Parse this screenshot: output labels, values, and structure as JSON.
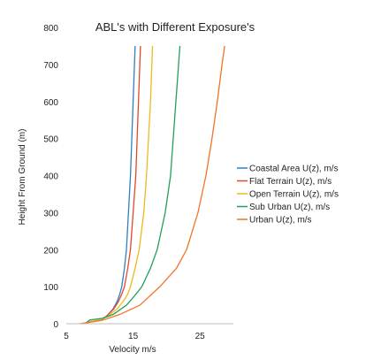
{
  "chart_data": {
    "type": "line",
    "title": "ABL's with Different Exposure's",
    "xlabel": "Velocity m/s",
    "ylabel": "Height From Ground (m)",
    "xlim": [
      5,
      30
    ],
    "ylim": [
      0,
      800
    ],
    "x_ticks": [
      5,
      15,
      25
    ],
    "y_ticks": [
      0,
      100,
      200,
      300,
      400,
      500,
      600,
      700,
      800
    ],
    "grid": false,
    "legend_position": "right",
    "series": [
      {
        "name": "Coastal Area U(z), m/s",
        "color": "#2F7FC1",
        "points": [
          [
            7.8,
            0
          ],
          [
            8.5,
            5
          ],
          [
            10.2,
            10
          ],
          [
            11.0,
            20
          ],
          [
            12.0,
            40
          ],
          [
            12.6,
            60
          ],
          [
            13.0,
            80
          ],
          [
            13.3,
            100
          ],
          [
            13.7,
            150
          ],
          [
            14.0,
            200
          ],
          [
            14.3,
            300
          ],
          [
            14.6,
            400
          ],
          [
            14.8,
            500
          ],
          [
            15.0,
            600
          ],
          [
            15.2,
            700
          ],
          [
            15.3,
            750
          ]
        ]
      },
      {
        "name": "Flat Terrain U(z), m/s",
        "color": "#E2482A",
        "points": [
          [
            7.5,
            0
          ],
          [
            8.5,
            5
          ],
          [
            10.0,
            10
          ],
          [
            11.0,
            20
          ],
          [
            12.1,
            40
          ],
          [
            12.8,
            60
          ],
          [
            13.3,
            80
          ],
          [
            13.7,
            100
          ],
          [
            14.2,
            150
          ],
          [
            14.6,
            200
          ],
          [
            15.0,
            300
          ],
          [
            15.4,
            400
          ],
          [
            15.6,
            500
          ],
          [
            15.8,
            600
          ],
          [
            16.0,
            700
          ],
          [
            16.1,
            750
          ]
        ]
      },
      {
        "name": "Open Terrain U(z), m/s",
        "color": "#F2B720",
        "points": [
          [
            7.2,
            0
          ],
          [
            8.4,
            5
          ],
          [
            10.0,
            10
          ],
          [
            11.2,
            20
          ],
          [
            12.6,
            40
          ],
          [
            13.5,
            60
          ],
          [
            14.2,
            80
          ],
          [
            14.6,
            100
          ],
          [
            15.3,
            150
          ],
          [
            15.9,
            200
          ],
          [
            16.6,
            300
          ],
          [
            17.0,
            400
          ],
          [
            17.3,
            500
          ],
          [
            17.6,
            600
          ],
          [
            17.8,
            700
          ],
          [
            17.9,
            750
          ]
        ]
      },
      {
        "name": "Sub Urban U(z), m/s",
        "color": "#22A05A",
        "points": [
          [
            7.8,
            0
          ],
          [
            8.5,
            10
          ],
          [
            10.5,
            15
          ],
          [
            12.0,
            25
          ],
          [
            14.0,
            50
          ],
          [
            15.2,
            75
          ],
          [
            16.3,
            100
          ],
          [
            17.6,
            150
          ],
          [
            18.6,
            200
          ],
          [
            19.8,
            300
          ],
          [
            20.6,
            400
          ],
          [
            21.0,
            500
          ],
          [
            21.4,
            600
          ],
          [
            21.8,
            700
          ],
          [
            22.0,
            750
          ]
        ]
      },
      {
        "name": "Urban U(z), m/s",
        "color": "#F07426",
        "points": [
          [
            7.0,
            0
          ],
          [
            9.0,
            5
          ],
          [
            10.5,
            10
          ],
          [
            13.0,
            25
          ],
          [
            16.0,
            50
          ],
          [
            19.0,
            100
          ],
          [
            21.5,
            150
          ],
          [
            23.0,
            200
          ],
          [
            24.7,
            300
          ],
          [
            25.9,
            400
          ],
          [
            26.8,
            500
          ],
          [
            27.6,
            600
          ],
          [
            28.3,
            700
          ],
          [
            28.7,
            750
          ]
        ]
      }
    ]
  }
}
